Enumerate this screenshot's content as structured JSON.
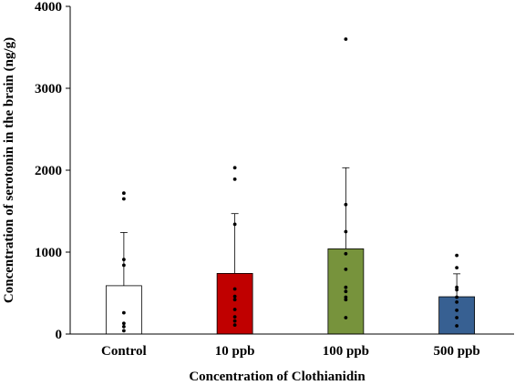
{
  "chart_data": {
    "type": "bar",
    "title": "",
    "xlabel": "Concentration of Clothianidin",
    "ylabel": "Concentration of serotonin in the brain (ng/g)",
    "ylim": [
      0,
      4000
    ],
    "yticks": [
      0,
      1000,
      2000,
      3000,
      4000
    ],
    "yticks_labels": [
      "0",
      "1000",
      "2000",
      "3000",
      "4000"
    ],
    "grid": false,
    "legend": "none",
    "categories": [
      "Control",
      "10 ppb",
      "100 ppb",
      "500 ppb"
    ],
    "values": [
      590,
      740,
      1040,
      455
    ],
    "error_upper": [
      1240,
      1470,
      2030,
      735
    ],
    "bar_colors": [
      "#ffffff",
      "#c00000",
      "#77933c",
      "#376092"
    ],
    "bar_edge_colors": [
      "#000000",
      "#000000",
      "#000000",
      "#000000"
    ],
    "points": [
      [
        1720,
        1650,
        910,
        840,
        260,
        130,
        90,
        40
      ],
      [
        2030,
        1890,
        1340,
        550,
        460,
        420,
        300,
        210,
        160,
        110
      ],
      [
        3600,
        1580,
        1250,
        980,
        790,
        570,
        520,
        450,
        420,
        200
      ],
      [
        960,
        810,
        570,
        540,
        450,
        390,
        290,
        200,
        100
      ]
    ]
  }
}
